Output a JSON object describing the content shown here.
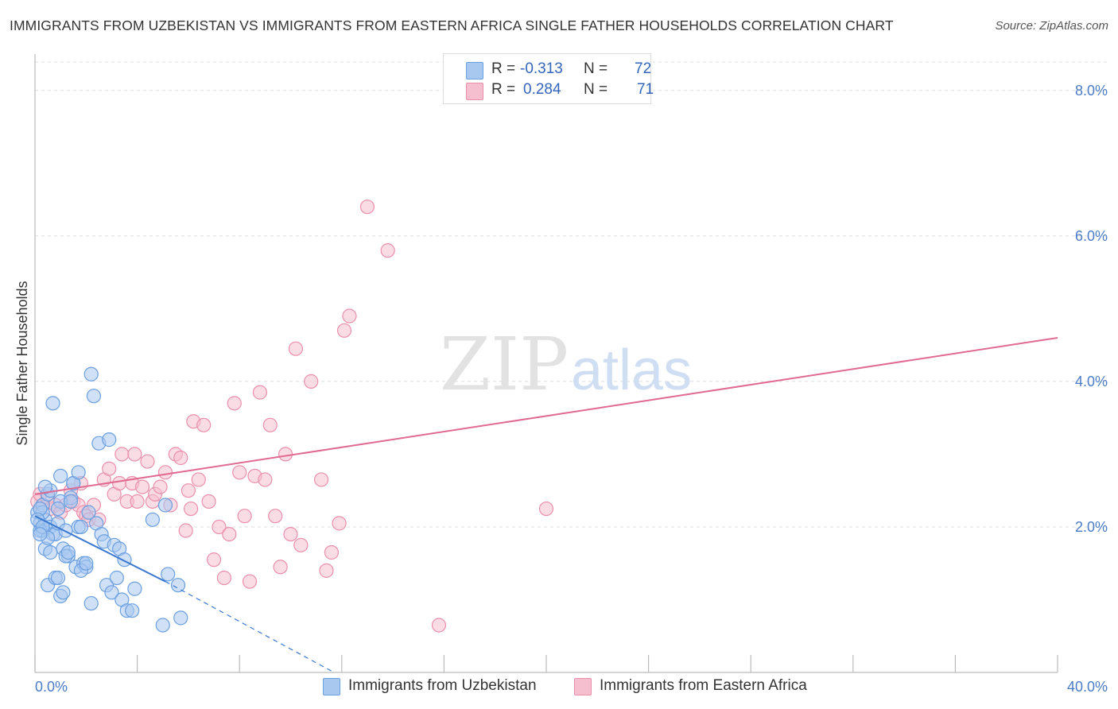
{
  "title": "IMMIGRANTS FROM UZBEKISTAN VS IMMIGRANTS FROM EASTERN AFRICA SINGLE FATHER HOUSEHOLDS CORRELATION CHART",
  "source": "Source: ZipAtlas.com",
  "watermark": {
    "zip": "ZIP",
    "atlas": "atlas"
  },
  "legend": {
    "r_label": "R =",
    "n_label": "N =",
    "rows": [
      {
        "r": "-0.313",
        "n": "72"
      },
      {
        "r": "0.284",
        "n": "71"
      }
    ]
  },
  "colors": {
    "blue_fill": "#a9c8f0",
    "blue_stroke": "#6a9fe0",
    "blue_line": "#3a78d0",
    "pink_fill": "#f6bfd0",
    "pink_stroke": "#ea8fab",
    "pink_line": "#e06a92",
    "grid": "#dddddd",
    "axis_text": "#4a7cc7"
  },
  "chart_data": {
    "type": "scatter",
    "ylabel": "Single Father Households",
    "xlim": [
      0,
      40
    ],
    "ylim": [
      0,
      8.5
    ],
    "x_tick_labels": [
      "0.0%",
      "40.0%"
    ],
    "y_ticks": [
      2,
      4,
      6,
      8
    ],
    "y_tick_labels": [
      "2.0%",
      "4.0%",
      "6.0%",
      "8.0%"
    ],
    "grid": true,
    "series": [
      {
        "name": "Immigrants from Uzbekistan",
        "color": "#6a9fe0",
        "trend": {
          "x0": 0,
          "y0": 2.15,
          "x1": 5.1,
          "y1": 1.25,
          "dash_to_x": 11.7,
          "dash_to_y": 0.0
        },
        "points": [
          [
            0.1,
            2.2
          ],
          [
            0.2,
            2.05
          ],
          [
            0.3,
            2.3
          ],
          [
            0.3,
            1.95
          ],
          [
            0.4,
            2.1
          ],
          [
            0.5,
            2.45
          ],
          [
            0.6,
            2.0
          ],
          [
            0.7,
            1.9
          ],
          [
            0.2,
            1.95
          ],
          [
            0.3,
            2.2
          ],
          [
            0.4,
            1.7
          ],
          [
            0.5,
            1.2
          ],
          [
            0.6,
            2.5
          ],
          [
            0.7,
            3.7
          ],
          [
            0.8,
            1.9
          ],
          [
            0.9,
            2.05
          ],
          [
            1.0,
            2.7
          ],
          [
            1.1,
            1.7
          ],
          [
            1.2,
            1.95
          ],
          [
            1.3,
            1.6
          ],
          [
            1.4,
            2.4
          ],
          [
            1.5,
            2.6
          ],
          [
            1.6,
            1.45
          ],
          [
            1.7,
            2.0
          ],
          [
            0.8,
            1.3
          ],
          [
            0.9,
            1.3
          ],
          [
            1.0,
            1.05
          ],
          [
            1.1,
            1.1
          ],
          [
            1.2,
            1.6
          ],
          [
            1.3,
            1.65
          ],
          [
            1.5,
            2.6
          ],
          [
            1.7,
            2.75
          ],
          [
            1.8,
            2.0
          ],
          [
            1.9,
            1.5
          ],
          [
            2.0,
            1.45
          ],
          [
            2.1,
            2.2
          ],
          [
            2.2,
            4.1
          ],
          [
            2.3,
            3.8
          ],
          [
            2.4,
            2.05
          ],
          [
            2.5,
            3.15
          ],
          [
            2.6,
            1.9
          ],
          [
            2.7,
            1.8
          ],
          [
            2.8,
            1.2
          ],
          [
            2.9,
            3.2
          ],
          [
            3.0,
            1.1
          ],
          [
            3.1,
            1.75
          ],
          [
            3.2,
            1.3
          ],
          [
            3.3,
            1.7
          ],
          [
            3.4,
            1.0
          ],
          [
            3.5,
            1.55
          ],
          [
            3.6,
            0.85
          ],
          [
            3.8,
            0.85
          ],
          [
            3.9,
            1.15
          ],
          [
            4.6,
            2.1
          ],
          [
            5.0,
            0.65
          ],
          [
            5.1,
            2.3
          ],
          [
            5.2,
            1.35
          ],
          [
            5.6,
            1.2
          ],
          [
            5.7,
            0.75
          ],
          [
            2.2,
            0.95
          ],
          [
            0.5,
            1.85
          ],
          [
            0.6,
            1.65
          ],
          [
            0.2,
            2.25
          ],
          [
            0.1,
            2.1
          ],
          [
            0.4,
            2.55
          ],
          [
            1.0,
            2.35
          ],
          [
            0.3,
            2.0
          ],
          [
            0.2,
            1.9
          ],
          [
            0.9,
            2.25
          ],
          [
            1.4,
            2.35
          ],
          [
            1.8,
            1.4
          ],
          [
            2.0,
            1.5
          ]
        ]
      },
      {
        "name": "Immigrants from Eastern Africa",
        "color": "#ea8fab",
        "trend": {
          "x0": 0,
          "y0": 2.45,
          "x1": 40,
          "y1": 4.6
        },
        "points": [
          [
            0.1,
            2.35
          ],
          [
            0.2,
            2.45
          ],
          [
            0.3,
            2.3
          ],
          [
            0.5,
            2.4
          ],
          [
            0.6,
            2.25
          ],
          [
            0.8,
            2.3
          ],
          [
            1.0,
            2.2
          ],
          [
            1.2,
            2.3
          ],
          [
            1.4,
            2.5
          ],
          [
            1.5,
            2.35
          ],
          [
            1.7,
            2.3
          ],
          [
            1.8,
            2.6
          ],
          [
            1.9,
            2.2
          ],
          [
            2.0,
            2.15
          ],
          [
            2.1,
            2.1
          ],
          [
            2.3,
            2.3
          ],
          [
            2.5,
            2.1
          ],
          [
            2.7,
            2.65
          ],
          [
            2.9,
            2.8
          ],
          [
            3.1,
            2.45
          ],
          [
            3.3,
            2.6
          ],
          [
            3.4,
            3.0
          ],
          [
            3.6,
            2.35
          ],
          [
            3.8,
            2.6
          ],
          [
            3.9,
            3.0
          ],
          [
            4.0,
            2.35
          ],
          [
            4.2,
            2.55
          ],
          [
            4.4,
            2.9
          ],
          [
            4.6,
            2.35
          ],
          [
            4.7,
            2.45
          ],
          [
            4.9,
            2.55
          ],
          [
            5.1,
            2.75
          ],
          [
            5.3,
            2.3
          ],
          [
            5.5,
            3.0
          ],
          [
            5.7,
            2.95
          ],
          [
            5.9,
            1.95
          ],
          [
            6.0,
            2.5
          ],
          [
            6.1,
            2.25
          ],
          [
            6.2,
            3.45
          ],
          [
            6.4,
            2.65
          ],
          [
            6.6,
            3.4
          ],
          [
            6.8,
            2.35
          ],
          [
            7.0,
            1.55
          ],
          [
            7.2,
            2.0
          ],
          [
            7.4,
            1.3
          ],
          [
            7.6,
            1.9
          ],
          [
            7.8,
            3.7
          ],
          [
            8.0,
            2.75
          ],
          [
            8.2,
            2.15
          ],
          [
            8.4,
            1.25
          ],
          [
            8.6,
            2.7
          ],
          [
            8.8,
            3.85
          ],
          [
            9.0,
            2.65
          ],
          [
            9.2,
            3.4
          ],
          [
            9.4,
            2.15
          ],
          [
            9.6,
            1.45
          ],
          [
            9.8,
            3.0
          ],
          [
            10.0,
            1.9
          ],
          [
            10.2,
            4.45
          ],
          [
            10.4,
            1.75
          ],
          [
            10.8,
            4.0
          ],
          [
            11.2,
            2.65
          ],
          [
            11.4,
            1.4
          ],
          [
            11.6,
            1.65
          ],
          [
            11.9,
            2.05
          ],
          [
            12.1,
            4.7
          ],
          [
            12.3,
            4.9
          ],
          [
            13.0,
            6.4
          ],
          [
            13.8,
            5.8
          ],
          [
            15.8,
            0.65
          ],
          [
            20.0,
            2.25
          ]
        ]
      }
    ]
  },
  "bottom_legend": [
    "Immigrants from Uzbekistan",
    "Immigrants from Eastern Africa"
  ]
}
